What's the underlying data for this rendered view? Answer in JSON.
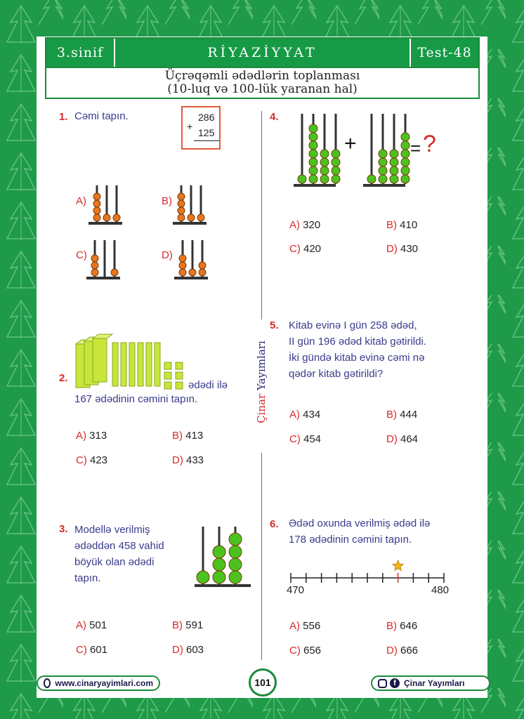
{
  "header": {
    "grade": "3.sinif",
    "subject": "RİYAZİYYAT",
    "test": "Test-48"
  },
  "subtitle": {
    "line1": "Üçrəqəmli ədədlərin toplanması",
    "line2": "(10-luq və 100-lük yaranan hal)"
  },
  "brand_vertical": {
    "part1": "Çinar",
    "part2": "Yayımları"
  },
  "q1": {
    "num": "1.",
    "text": "Cəmi tapın.",
    "addend1": "286",
    "addend2": "125",
    "plus": "+",
    "options": [
      {
        "l": "A)",
        "v": ""
      },
      {
        "l": "B)",
        "v": ""
      },
      {
        "l": "C)",
        "v": ""
      },
      {
        "l": "D)",
        "v": ""
      }
    ]
  },
  "q2": {
    "num": "2.",
    "text1": "ədədi ilə",
    "text2": "167 ədədinin cəmini tapın.",
    "options": [
      {
        "l": "A)",
        "v": "313"
      },
      {
        "l": "B)",
        "v": "413"
      },
      {
        "l": "C)",
        "v": "423"
      },
      {
        "l": "D)",
        "v": "433"
      }
    ]
  },
  "q3": {
    "num": "3.",
    "lines": [
      "Modellə verilmiş",
      "ədəddən 458 vahid",
      "böyük olan ədədi",
      "tapın."
    ],
    "options": [
      {
        "l": "A)",
        "v": "501"
      },
      {
        "l": "B)",
        "v": "591"
      },
      {
        "l": "C)",
        "v": "601"
      },
      {
        "l": "D)",
        "v": "603"
      }
    ]
  },
  "q4": {
    "num": "4.",
    "plus": "+",
    "equals": "=",
    "question": "?",
    "options": [
      {
        "l": "A)",
        "v": "320"
      },
      {
        "l": "B)",
        "v": "410"
      },
      {
        "l": "C)",
        "v": "420"
      },
      {
        "l": "D)",
        "v": "430"
      }
    ]
  },
  "q5": {
    "num": "5.",
    "lines": [
      "Kitab evinə I gün 258 ədəd,",
      "II gün 196 ədəd kitab gətirildi.",
      "İki gündə kitab evinə cəmi nə",
      "qədər kitab gətirildi?"
    ],
    "options": [
      {
        "l": "A)",
        "v": "434"
      },
      {
        "l": "B)",
        "v": "444"
      },
      {
        "l": "C)",
        "v": "454"
      },
      {
        "l": "D)",
        "v": "464"
      }
    ]
  },
  "q6": {
    "num": "6.",
    "lines": [
      "Ədəd oxunda verilmiş ədəd ilə",
      "178 ədədinin cəmini tapın."
    ],
    "axis_start": "470",
    "axis_end": "480",
    "marked_value": 477,
    "options": [
      {
        "l": "A)",
        "v": "556"
      },
      {
        "l": "B)",
        "v": "646"
      },
      {
        "l": "C)",
        "v": "656"
      },
      {
        "l": "D)",
        "v": "666"
      }
    ]
  },
  "footer": {
    "website": "www.cinaryayimlari.com",
    "page": "101",
    "social": "Çinar Yayımları"
  },
  "colors": {
    "green": "#169a45",
    "red": "#d62a2a",
    "orange": "#e8761e",
    "bead_green": "#4cc21f"
  }
}
